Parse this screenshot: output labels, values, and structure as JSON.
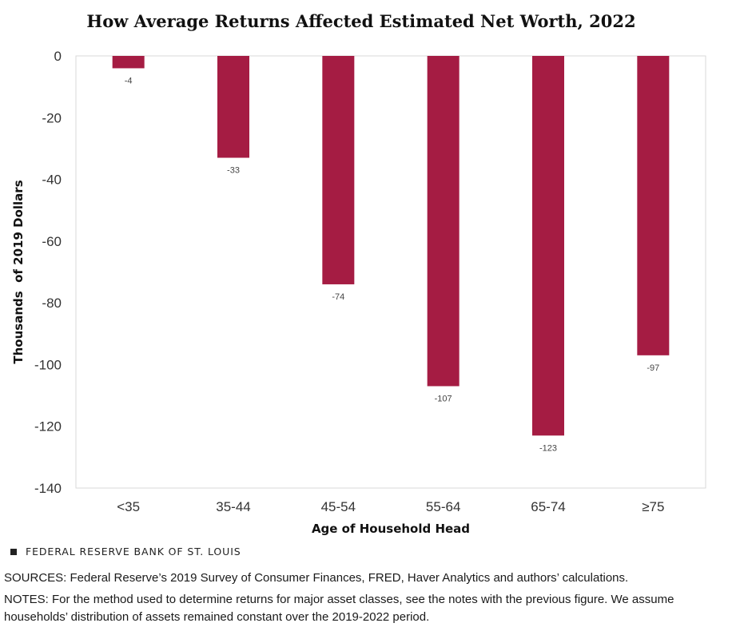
{
  "chart_data": {
    "type": "bar",
    "title": "How Average Returns Affected Estimated Net Worth, 2022",
    "xlabel": "Age of Household Head",
    "ylabel": "Thousands  of 2019 Dollars",
    "categories": [
      "<35",
      "35-44",
      "45-54",
      "55-64",
      "65-74",
      "≥75"
    ],
    "values": [
      -4,
      -33,
      -74,
      -107,
      -123,
      -97
    ],
    "data_labels": [
      "-4",
      "-33",
      "-74",
      "-107",
      "-123",
      "-97"
    ],
    "ylim": [
      -140,
      0
    ],
    "yticks": [
      0,
      -20,
      -40,
      -60,
      -80,
      -100,
      -120,
      -140
    ],
    "ytick_labels": [
      "0",
      "-20",
      "-40",
      "-60",
      "-80",
      "-100",
      "-120",
      "-140"
    ],
    "grid": false,
    "legend": "none",
    "bar_color": "#a51c43"
  },
  "footer": {
    "source_org": "FEDERAL RESERVE BANK OF ST. LOUIS",
    "sources": "SOURCES: Federal Reserve’s 2019 Survey of Consumer Finances, FRED, Haver Analytics and authors’ calculations.",
    "notes": "NOTES: For the method used to determine returns for major asset classes, see the notes with the previous figure. We assume households’ distribution of assets remained constant over the 2019-2022 period."
  }
}
